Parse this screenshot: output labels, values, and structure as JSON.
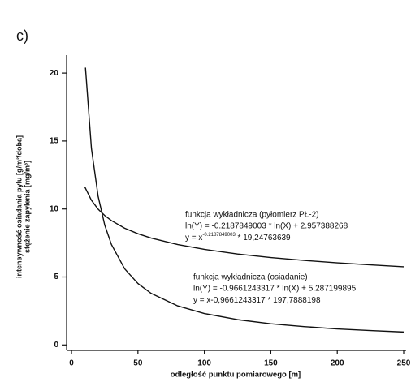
{
  "panel_label": "c)",
  "chart_data": {
    "type": "line",
    "x_label": "odległość punktu pomiarowego [m]",
    "y_labels": [
      "intensywność osiadania pyłu [g/m²/doba]",
      "stężenie zapylenia [mg/m³]"
    ],
    "xlim": [
      -4,
      250
    ],
    "xticks": [
      0,
      50,
      100,
      150,
      200,
      250
    ],
    "ylim": [
      -0.4,
      21.2
    ],
    "yticks": [
      0,
      5,
      10,
      15,
      20
    ],
    "series": [
      {
        "color": "#111111",
        "x": [
          10,
          15,
          20,
          25,
          30,
          40,
          50,
          60,
          80,
          100,
          125,
          150,
          175,
          200,
          225,
          250
        ],
        "values": [
          11.63,
          10.64,
          9.99,
          9.52,
          9.15,
          8.59,
          8.18,
          7.86,
          7.38,
          7.03,
          6.69,
          6.43,
          6.22,
          6.04,
          5.89,
          5.75
        ]
      },
      {
        "color": "#111111",
        "x": [
          10.5,
          15,
          20,
          25,
          30,
          40,
          50,
          60,
          80,
          100,
          125,
          150,
          175,
          200,
          225,
          250
        ],
        "values": [
          20.4,
          14.45,
          10.95,
          8.82,
          7.4,
          5.6,
          4.52,
          3.79,
          2.87,
          2.31,
          1.86,
          1.56,
          1.35,
          1.18,
          1.06,
          0.95
        ]
      }
    ],
    "annotations": [
      {
        "lines": [
          "funkcja wykładnicza (pyłomierz PŁ-2)",
          "ln(Y) = -0.2187849003 * ln(X) + 2.957388268"
        ],
        "formula": {
          "pre": "y = x",
          "sup": "-0.2187849003",
          "post": " * 19,24763639"
        }
      },
      {
        "lines": [
          "funkcja wykładnicza (osiadanie)",
          "ln(Y) = -0.9661243317 * ln(X) + 5.287199895"
        ],
        "formula": {
          "pre": "y = x-0,9661243317 * 197,7888198"
        }
      }
    ]
  }
}
